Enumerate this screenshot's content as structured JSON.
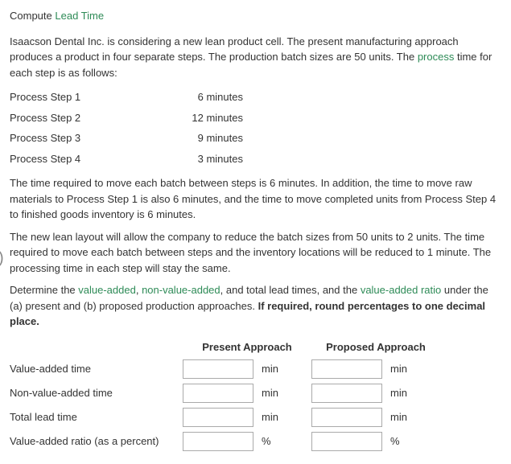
{
  "title": {
    "part1": "Compute ",
    "part2": "Lead Time"
  },
  "intro": {
    "p1_a": "Isaacson Dental Inc. is considering a new lean product cell. The present manufacturing approach produces a product in four separate steps. The production batch sizes are 50 units. The ",
    "p1_green": "process",
    "p1_b": " time for each step is as follows:"
  },
  "steps": [
    {
      "label": "Process Step 1",
      "value": "6 minutes"
    },
    {
      "label": "Process Step 2",
      "value": "12 minutes"
    },
    {
      "label": "Process Step 3",
      "value": "9 minutes"
    },
    {
      "label": "Process Step 4",
      "value": "3 minutes"
    }
  ],
  "para2": "The time required to move each batch between steps is 6 minutes. In addition, the time to move raw materials to Process Step 1 is also 6 minutes, and the time to move completed units from Process Step 4 to finished goods inventory is 6 minutes.",
  "para3": "The new lean layout will allow the company to reduce the batch sizes from 50 units to 2 units. The time required to move each batch between steps and the inventory locations will be reduced to 1 minute. The processing time in each step will stay the same.",
  "para4": {
    "a": "Determine the ",
    "g1": "value-added",
    "b": ", ",
    "g2": "non-value-added",
    "c": ", and total lead times, and the ",
    "g3": "value-added ratio",
    "d": " under the (a) present and (b) proposed production approaches. ",
    "bold": "If required, round percentages to one decimal place."
  },
  "headers": {
    "col1": "Present Approach",
    "col2": "Proposed Approach"
  },
  "rows": [
    {
      "label": "Value-added time",
      "unit": "min"
    },
    {
      "label": "Non-value-added time",
      "unit": "min"
    },
    {
      "label": "Total lead time",
      "unit": "min"
    },
    {
      "label": "Value-added ratio (as a percent)",
      "unit": "%"
    }
  ],
  "paren": ")"
}
